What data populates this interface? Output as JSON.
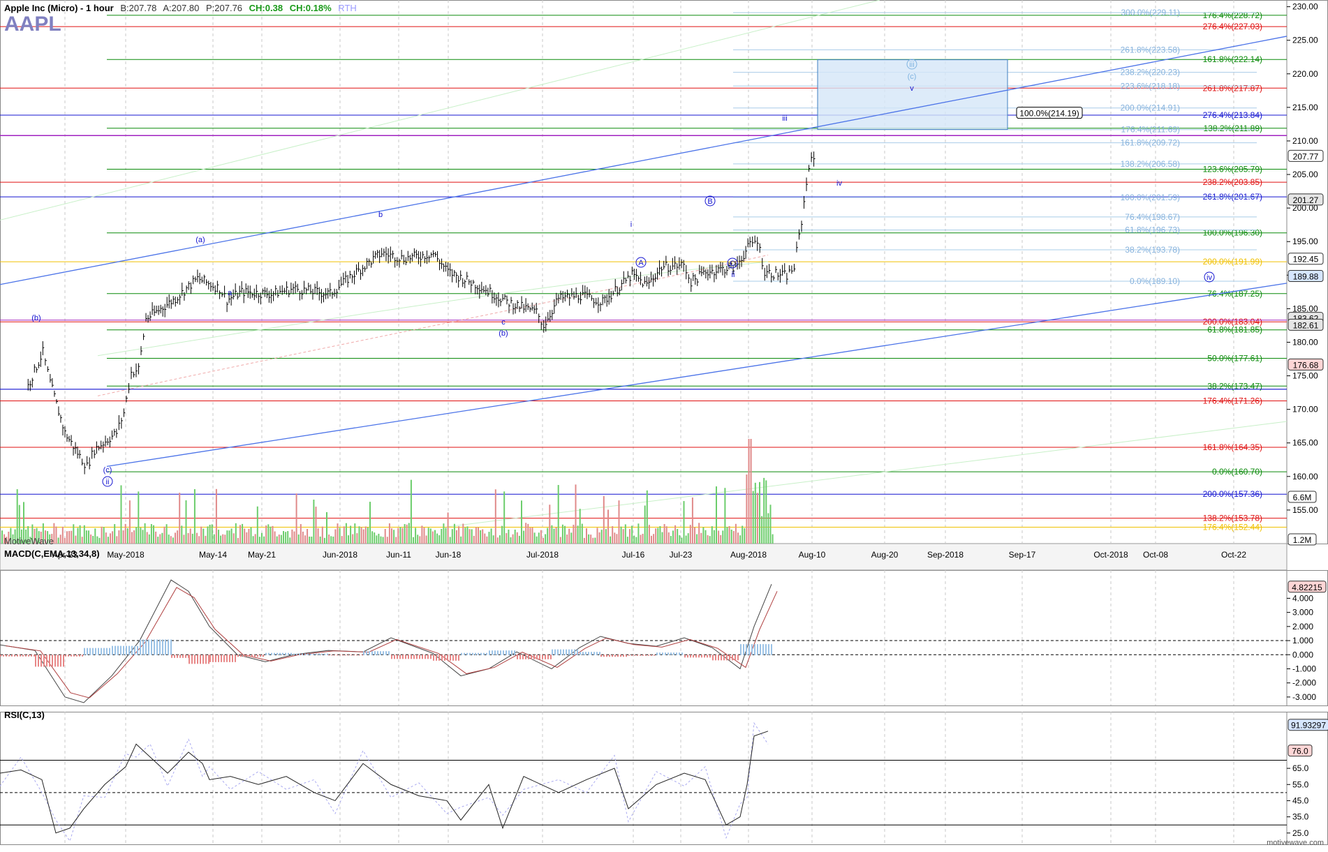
{
  "header": {
    "title": "Apple Inc (Micro) - 1 hour",
    "bid": "B:207.78",
    "ask": "A:207.80",
    "price": "P:207.76",
    "change": "CH:0.38",
    "change_pct": "CH:0.18%",
    "session": "RTH",
    "symbol": "AAPL"
  },
  "branding": {
    "left": "MotiveWave",
    "right": "motivewave.com"
  },
  "indicators": {
    "macd_title": "MACD(C,EMA,13,34,8)",
    "rsi_title": "RSI(C,13)"
  },
  "colors": {
    "green": "#0a8a0a",
    "red": "#e01010",
    "blue": "#1414d0",
    "lightblue": "#7fb3e0",
    "yellow": "#f0c000",
    "purple": "#a020c0"
  },
  "chart_data": {
    "type": "ohlc",
    "timeframe": "1 hour",
    "ylim": [
      150,
      231
    ],
    "y_ticks": [
      155,
      160,
      165,
      170,
      175,
      180,
      185,
      190,
      195,
      200,
      205,
      210,
      215,
      220,
      225,
      230
    ],
    "y_tick_labels": [
      "155.00",
      "160.00",
      "165.00",
      "170.00",
      "175.00",
      "180.00",
      "185.00",
      "190.00",
      "195.00",
      "200.00",
      "205.00",
      "210.00",
      "215.00",
      "220.00",
      "225.00",
      "230.00"
    ],
    "x_ticks": [
      "Apr-23",
      "May-2018",
      "May-14",
      "May-21",
      "Jun-2018",
      "Jun-11",
      "Jun-18",
      "Jul-2018",
      "Jul-16",
      "Jul-23",
      "Aug-2018",
      "Aug-10",
      "Aug-20",
      "Sep-2018",
      "Sep-17",
      "Oct-2018",
      "Oct-08",
      "Oct-22"
    ],
    "price_path": [
      [
        "Apr-18",
        173.5
      ],
      [
        "Apr-20",
        178.5
      ],
      [
        "Apr-21",
        174
      ],
      [
        "Apr-23",
        166.5
      ],
      [
        "Apr-25",
        163
      ],
      [
        "Apr-26",
        161.5
      ],
      [
        "Apr-27",
        164
      ],
      [
        "Apr-30",
        166.5
      ],
      [
        "May-01",
        169.5
      ],
      [
        "May-02",
        175.5
      ],
      [
        "May-03",
        176
      ],
      [
        "May-04",
        183.5
      ],
      [
        "May-08",
        186.5
      ],
      [
        "May-11",
        189.5
      ],
      [
        "May-14",
        188
      ],
      [
        "May-15",
        186.3
      ],
      [
        "May-17",
        187.5
      ],
      [
        "May-21",
        187.2
      ],
      [
        "May-24",
        188
      ],
      [
        "May-29",
        187.2
      ],
      [
        "Jun-01",
        190
      ],
      [
        "Jun-05",
        193.3
      ],
      [
        "Jun-08",
        192.5
      ],
      [
        "Jun-12",
        193.2
      ],
      [
        "Jun-14",
        190.5
      ],
      [
        "Jun-18",
        188.5
      ],
      [
        "Jun-20",
        187.3
      ],
      [
        "Jun-22",
        186
      ],
      [
        "Jun-26",
        184.5
      ],
      [
        "Jun-27",
        182.5
      ],
      [
        "Jun-29",
        186.5
      ],
      [
        "Jul-02",
        187
      ],
      [
        "Jul-05",
        186
      ],
      [
        "Jul-09",
        190
      ],
      [
        "Jul-11",
        188.5
      ],
      [
        "Jul-13",
        191.2
      ],
      [
        "Jul-16",
        191.5
      ],
      [
        "Jul-17",
        189
      ],
      [
        "Jul-19",
        190.5
      ],
      [
        "Jul-23",
        191.2
      ],
      [
        "Jul-25",
        194.5
      ],
      [
        "Jul-26",
        195.3
      ],
      [
        "Jul-27",
        190.5
      ],
      [
        "Jul-30",
        189.9
      ],
      [
        "Jul-31",
        191.2
      ],
      [
        "Aug-01",
        198
      ],
      [
        "Aug-02",
        206.5
      ],
      [
        "Aug-03",
        207.76
      ]
    ],
    "fib_lines": [
      {
        "label": "176.4%(228.72)",
        "value": 228.72,
        "color": "green"
      },
      {
        "label": "276.4%(227.03)",
        "value": 227.03,
        "color": "red"
      },
      {
        "label": "161.8%(222.14)",
        "value": 222.14,
        "color": "green"
      },
      {
        "label": "261.8%(217.87)",
        "value": 217.87,
        "color": "red"
      },
      {
        "label": "276.4%(213.84)",
        "value": 213.84,
        "color": "blue"
      },
      {
        "label": "138.2%(211.89)",
        "value": 211.89,
        "color": "green"
      },
      {
        "label": "123.6%(205.79)",
        "value": 205.79,
        "color": "green"
      },
      {
        "label": "238.2%(203.85)",
        "value": 203.85,
        "color": "red"
      },
      {
        "label": "261.8%(201.67)",
        "value": 201.67,
        "color": "blue"
      },
      {
        "label": "100.0%(196.30)",
        "value": 196.3,
        "color": "green"
      },
      {
        "label": "200.0%(191.99)",
        "value": 191.99,
        "color": "yellow"
      },
      {
        "label": "76.4%(187.25)",
        "value": 187.25,
        "color": "green"
      },
      {
        "label": "200.0%(183.04)",
        "value": 183.04,
        "color": "red"
      },
      {
        "label": "61.8%(181.85)",
        "value": 181.85,
        "color": "green"
      },
      {
        "label": "50.0%(177.61)",
        "value": 177.61,
        "color": "green"
      },
      {
        "label": "38.2%(173.47)",
        "value": 173.47,
        "color": "green"
      },
      {
        "label": "176.4%(171.26)",
        "value": 171.26,
        "color": "red"
      },
      {
        "label": "161.8%(164.35)",
        "value": 164.35,
        "color": "red"
      },
      {
        "label": "0.0%(160.70)",
        "value": 160.7,
        "color": "green"
      },
      {
        "label": "200.0%(157.36)",
        "value": 157.36,
        "color": "blue"
      },
      {
        "label": "138.2%(153.78)",
        "value": 153.78,
        "color": "red"
      },
      {
        "label": "176.4%(152.44)",
        "value": 152.44,
        "color": "yellow"
      }
    ],
    "light_fib_lines": [
      {
        "label": "300.0%(229.11)",
        "value": 229.11
      },
      {
        "label": "261.8%(223.58)",
        "value": 223.58
      },
      {
        "label": "238.2%(220.23)",
        "value": 220.23
      },
      {
        "label": "223.6%(218.18)",
        "value": 218.18
      },
      {
        "label": "200.0%(214.91)",
        "value": 214.91
      },
      {
        "label": "176.4%(211.69)",
        "value": 211.69
      },
      {
        "label": "161.8%(209.72)",
        "value": 209.72
      },
      {
        "label": "138.2%(206.58)",
        "value": 206.58
      },
      {
        "label": "100.0%(201.59)",
        "value": 201.59
      },
      {
        "label": "76.4%(198.67)",
        "value": 198.67
      },
      {
        "label": "61.8%(196.73)",
        "value": 196.73
      },
      {
        "label": "38.2%(193.78)",
        "value": 193.78
      },
      {
        "label": "0.0%(189.10)",
        "value": 189.1
      }
    ],
    "box_label": "100.0%(214.19)",
    "price_badges": [
      {
        "label": "207.77",
        "value": 207.77,
        "bg": "#ffffff"
      },
      {
        "label": "201.27",
        "value": 201.27,
        "bg": "#e6e6e6"
      },
      {
        "label": "192.45",
        "value": 192.45,
        "bg": "#ffffff"
      },
      {
        "label": "189.88",
        "value": 189.88,
        "bg": "#d6e6ff"
      },
      {
        "label": "183.62",
        "value": 183.62,
        "bg": "#e6e6e6"
      },
      {
        "label": "182.61",
        "value": 182.61,
        "bg": "#e6e6e6"
      },
      {
        "label": "176.68",
        "value": 176.68,
        "bg": "#ffd6d6"
      }
    ],
    "volume_labels": [
      "6.6M",
      "1.2M"
    ],
    "wave_labels": [
      {
        "text": "(b)"
      },
      {
        "text": "(c)"
      },
      {
        "text": "ii"
      },
      {
        "text": "(a)"
      },
      {
        "text": "a"
      },
      {
        "text": "b"
      },
      {
        "text": "c"
      },
      {
        "text": "(b)"
      },
      {
        "text": "i"
      },
      {
        "text": "A"
      },
      {
        "text": "B"
      },
      {
        "text": "C"
      },
      {
        "text": "ii"
      },
      {
        "text": "iii"
      },
      {
        "text": "iv"
      },
      {
        "text": "iii"
      },
      {
        "text": "(c)"
      },
      {
        "text": "v"
      },
      {
        "text": "iv"
      }
    ],
    "macd": {
      "title": "MACD(C,EMA,13,34,8)",
      "current": "4.82215",
      "ylim": [
        -3.6,
        6.0
      ],
      "y_ticks": [
        "4.000",
        "3.000",
        "2.000",
        "1.000",
        "0.000",
        "-1.000",
        "-2.000",
        "-3.000"
      ],
      "y_values": [
        4,
        3,
        2,
        1,
        0,
        -1,
        -2,
        -3
      ]
    },
    "rsi": {
      "title": "RSI(C,13)",
      "current": "91.93297",
      "level": "76.0",
      "ylim": [
        18,
        100
      ],
      "y_ticks": [
        "65.0",
        "55.0",
        "45.0",
        "35.0",
        "25.0"
      ],
      "y_values": [
        65,
        55,
        45,
        35,
        25
      ],
      "bands": [
        70,
        50,
        30
      ]
    }
  }
}
